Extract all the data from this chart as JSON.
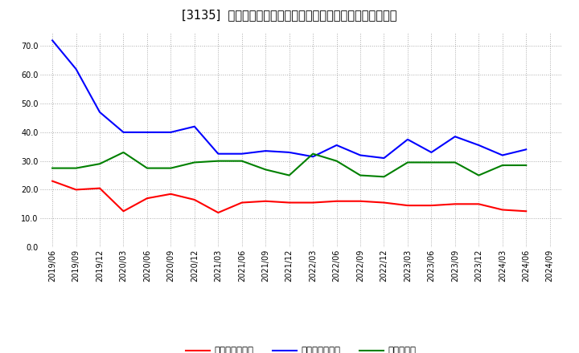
{
  "title": "[3135]  売上債権回転率、買入債務回転率、在庫回転率の推移",
  "x_labels": [
    "2019/06",
    "2019/09",
    "2019/12",
    "2020/03",
    "2020/06",
    "2020/09",
    "2020/12",
    "2021/03",
    "2021/06",
    "2021/09",
    "2021/12",
    "2022/03",
    "2022/06",
    "2022/09",
    "2022/12",
    "2023/03",
    "2023/06",
    "2023/09",
    "2023/12",
    "2024/03",
    "2024/06",
    "2024/09"
  ],
  "receivable_turnover": [
    23.0,
    20.0,
    20.5,
    12.5,
    17.0,
    18.5,
    16.5,
    12.0,
    15.5,
    16.0,
    15.5,
    15.5,
    16.0,
    16.0,
    15.5,
    14.5,
    14.5,
    15.0,
    15.0,
    13.0,
    12.5,
    null
  ],
  "payable_turnover": [
    72.0,
    62.0,
    47.0,
    40.0,
    40.0,
    40.0,
    42.0,
    32.5,
    32.5,
    33.5,
    33.0,
    31.5,
    35.5,
    32.0,
    31.0,
    37.5,
    33.0,
    38.5,
    35.5,
    32.0,
    34.0,
    null
  ],
  "inventory_turnover": [
    27.5,
    27.5,
    29.0,
    33.0,
    27.5,
    27.5,
    29.5,
    30.0,
    30.0,
    27.0,
    25.0,
    32.5,
    30.0,
    25.0,
    24.5,
    29.5,
    29.5,
    29.5,
    25.0,
    28.5,
    28.5,
    null
  ],
  "receivable_color": "#ff0000",
  "payable_color": "#0000ff",
  "inventory_color": "#008000",
  "ylim": [
    0.0,
    75.0
  ],
  "yticks": [
    0.0,
    10.0,
    20.0,
    30.0,
    40.0,
    50.0,
    60.0,
    70.0
  ],
  "legend_labels": [
    "売上債権回転率",
    "買入債務回転率",
    "在庫回転率"
  ],
  "bg_color": "#ffffff",
  "grid_color": "#aaaaaa",
  "title_fontsize": 10.5,
  "label_fontsize": 7,
  "legend_fontsize": 8.5
}
